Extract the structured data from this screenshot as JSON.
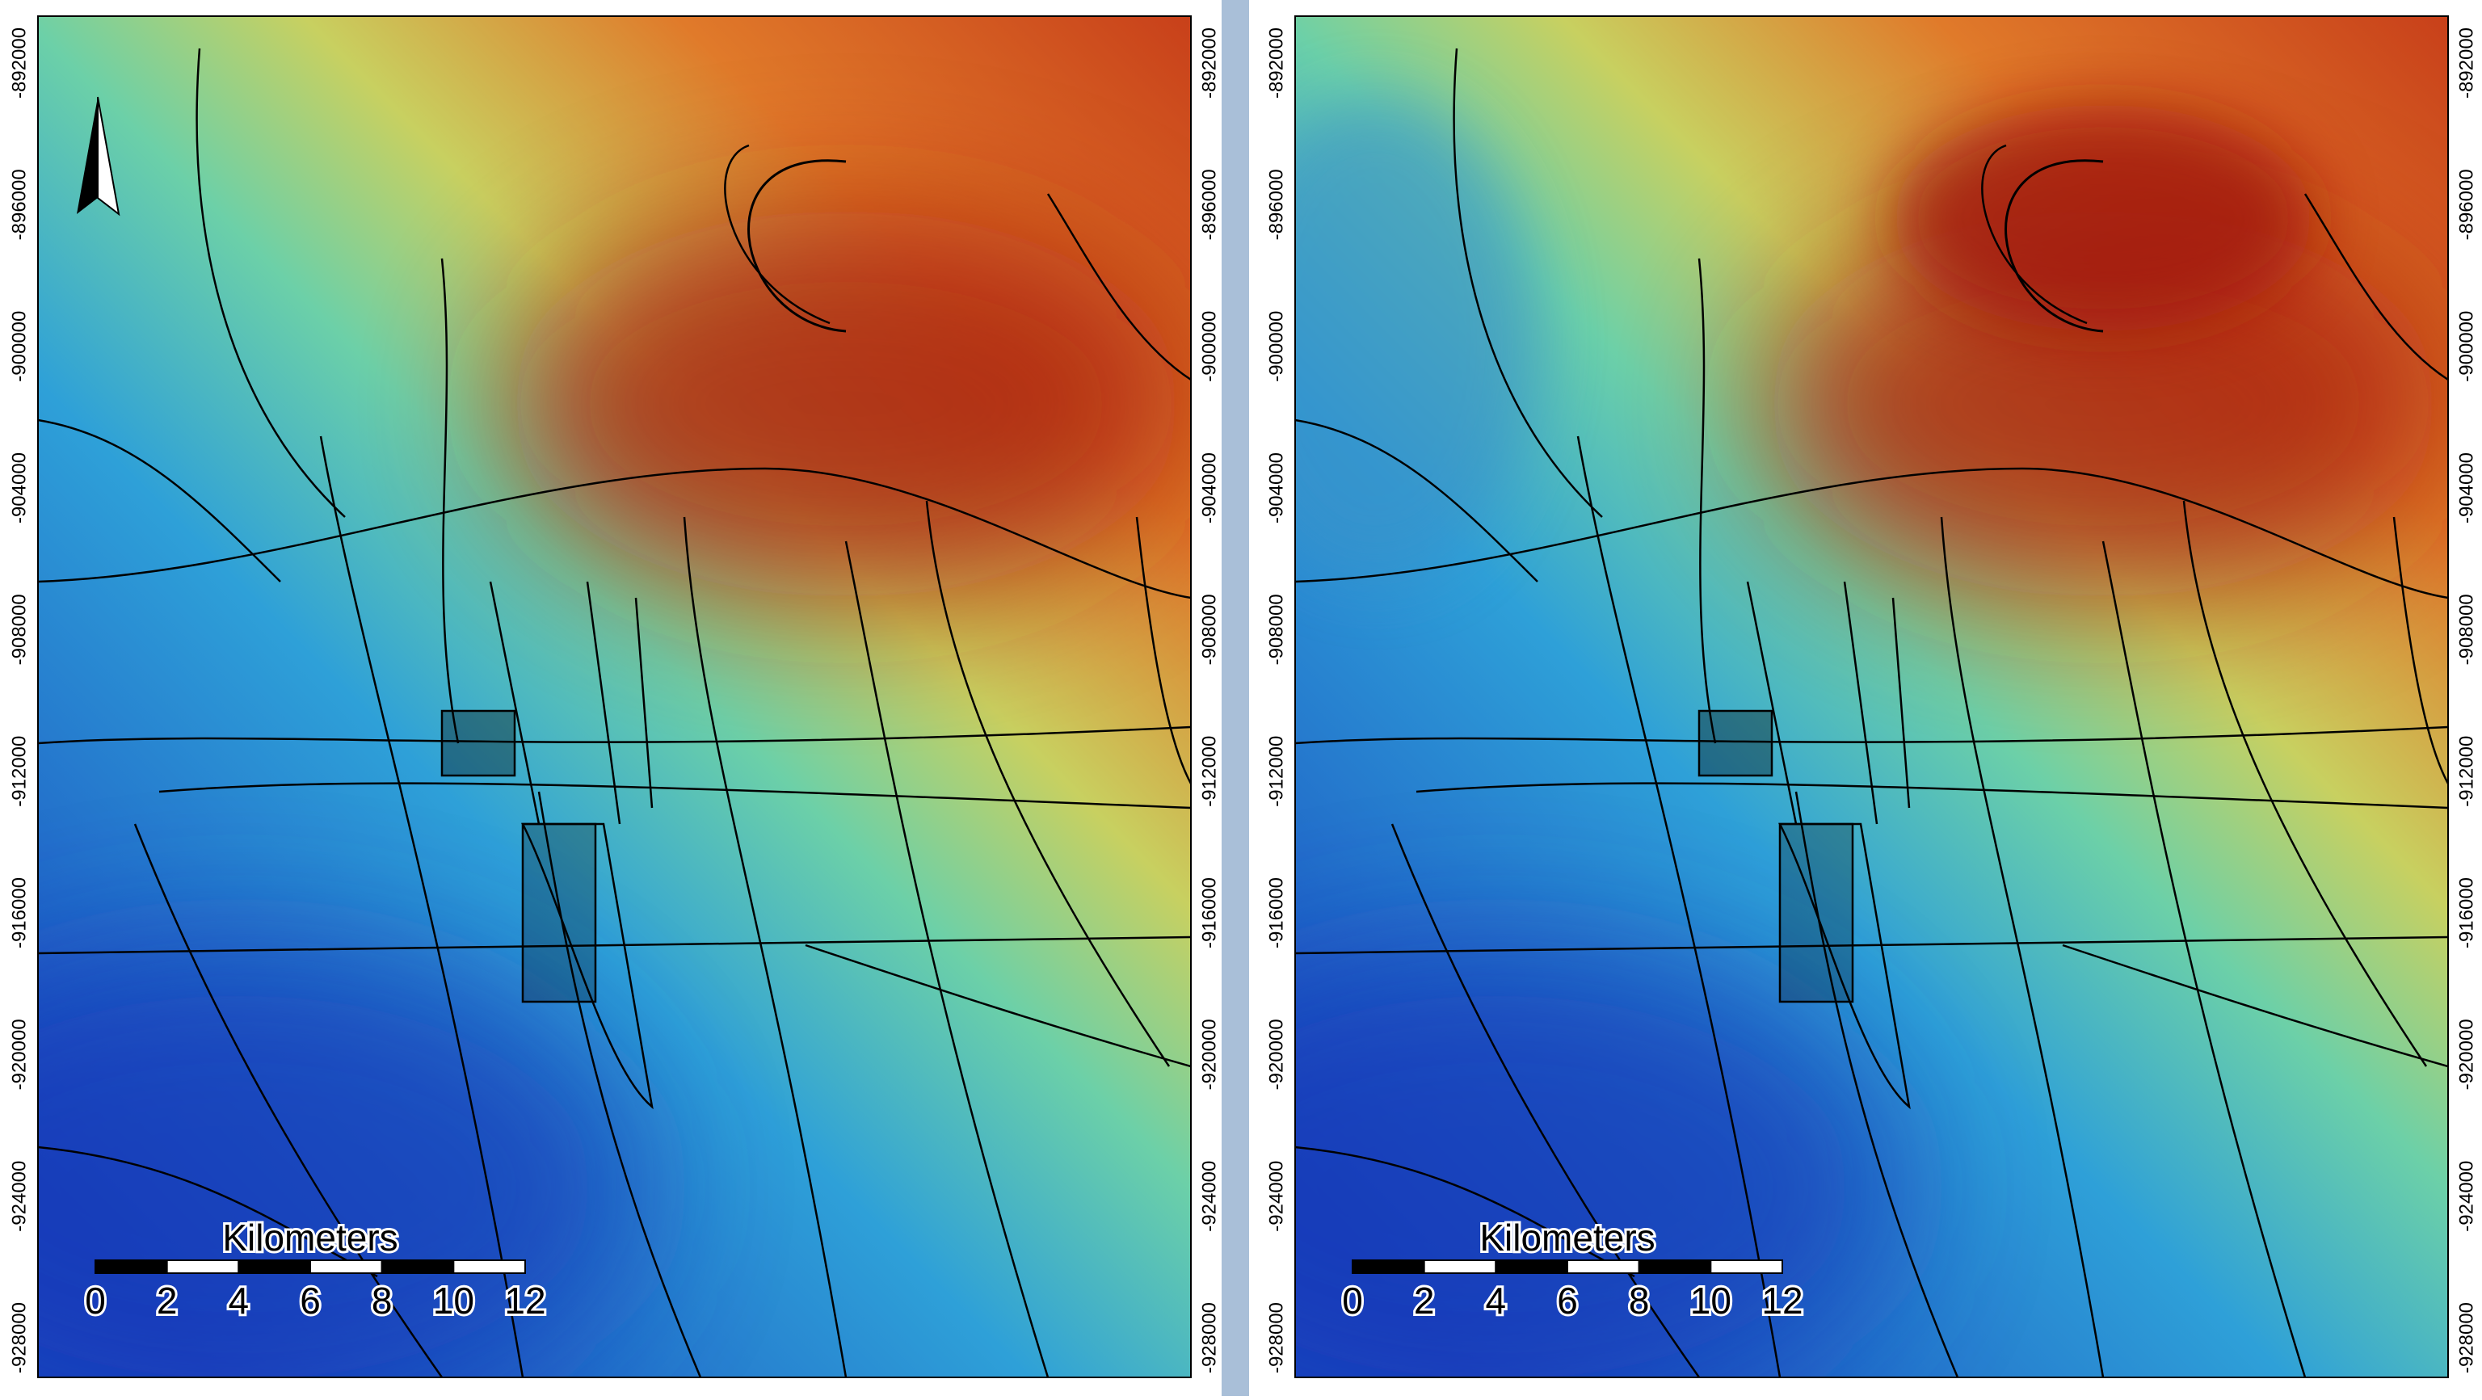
{
  "panels": [
    {
      "y_axis_labels": [
        "-892000",
        "-896000",
        "-900000",
        "-904000",
        "-908000",
        "-912000",
        "-916000",
        "-920000",
        "-924000",
        "-928000"
      ],
      "scale_bar": {
        "title": "Kilometers",
        "labels": [
          "0",
          "2",
          "4",
          "6",
          "8",
          "10",
          "12"
        ]
      }
    },
    {
      "y_axis_labels": [
        "-892000",
        "-896000",
        "-900000",
        "-904000",
        "-908000",
        "-912000",
        "-916000",
        "-920000",
        "-924000",
        "-928000"
      ],
      "scale_bar": {
        "title": "Kilometers",
        "labels": [
          "0",
          "2",
          "4",
          "6",
          "8",
          "10",
          "12"
        ]
      }
    }
  ]
}
